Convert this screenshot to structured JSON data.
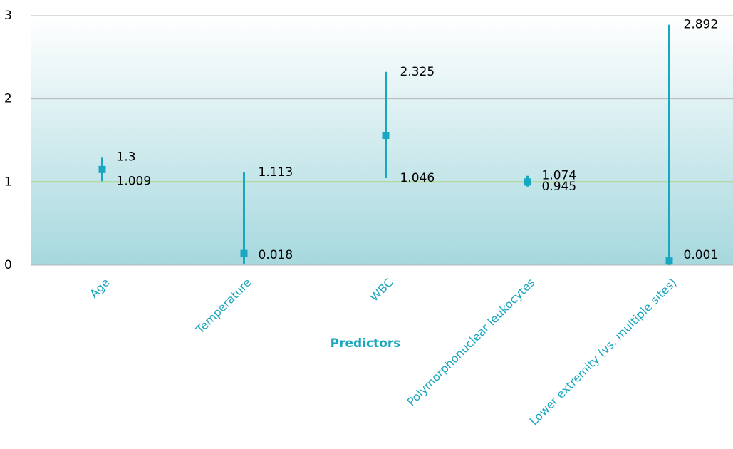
{
  "chart_data": {
    "type": "errorbar",
    "x_label": "Predictors",
    "categories": [
      "Age",
      "Temperature",
      "WBC",
      "Polymorphonuclear leukocytes",
      "Lower extremity (vs. multiple sites)"
    ],
    "values": [
      1.15,
      0.14,
      1.56,
      1.0,
      0.05
    ],
    "high": [
      1.3,
      1.113,
      2.325,
      1.074,
      2.892
    ],
    "low": [
      1.009,
      0.018,
      1.046,
      0.945,
      0.001
    ],
    "color": "#17a7c0",
    "ylim": [
      0,
      3
    ],
    "yticks": [
      0,
      1,
      2,
      3
    ],
    "grid": true,
    "reference_line": 1,
    "reference_color": "#9acd32"
  }
}
